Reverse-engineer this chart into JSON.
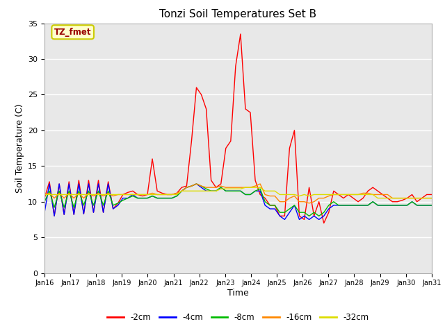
{
  "title": "Tonzi Soil Temperatures Set B",
  "xlabel": "Time",
  "ylabel": "Soil Temperature (C)",
  "annotation_text": "TZ_fmet",
  "annotation_bg": "#FFFFCC",
  "annotation_border": "#CCCC00",
  "annotation_fg": "#990000",
  "ylim": [
    0,
    35
  ],
  "bg_color": "#E8E8E8",
  "series_colors": {
    "-2cm": "#FF0000",
    "-4cm": "#0000FF",
    "-8cm": "#00BB00",
    "-16cm": "#FF8800",
    "-32cm": "#DDDD00"
  },
  "x_tick_labels": [
    "Jan 16",
    "Jan 17",
    "Jan 18",
    "Jan 19",
    "Jan 20",
    "Jan 21",
    "Jan 22",
    "Jan 23",
    "Jan 24",
    "Jan 25",
    "Jan 26",
    "Jan 27",
    "Jan 28",
    "Jan 29",
    "Jan 30",
    "Jan 31"
  ],
  "series": {
    "-2cm": [
      10.5,
      12.8,
      8.0,
      12.5,
      8.2,
      12.8,
      8.2,
      13.0,
      8.3,
      13.0,
      8.5,
      13.0,
      8.5,
      12.8,
      9.0,
      9.8,
      11.0,
      11.3,
      11.5,
      11.0,
      10.8,
      11.0,
      16.0,
      11.5,
      11.2,
      11.0,
      11.0,
      11.2,
      12.0,
      12.2,
      18.5,
      26.0,
      25.0,
      23.0,
      13.0,
      12.0,
      12.5,
      17.5,
      18.5,
      29.0,
      33.5,
      23.0,
      22.5,
      13.0,
      11.0,
      10.5,
      9.5,
      9.5,
      8.0,
      8.0,
      17.5,
      20.0,
      8.0,
      7.5,
      12.0,
      8.0,
      10.0,
      7.0,
      8.5,
      11.5,
      11.0,
      10.5,
      11.0,
      10.5,
      10.0,
      10.5,
      11.5,
      12.0,
      11.5,
      11.0,
      10.5,
      10.0,
      10.0,
      10.2,
      10.5,
      11.0,
      10.0,
      10.5,
      11.0,
      11.0
    ],
    "-4cm": [
      8.5,
      12.5,
      8.0,
      12.5,
      8.2,
      12.5,
      8.2,
      12.5,
      8.3,
      12.5,
      8.5,
      12.5,
      8.5,
      12.5,
      9.0,
      9.5,
      10.5,
      10.5,
      11.0,
      10.5,
      10.5,
      10.5,
      10.8,
      10.5,
      10.5,
      10.5,
      10.5,
      10.8,
      11.5,
      12.0,
      12.2,
      12.5,
      12.0,
      11.5,
      11.5,
      11.5,
      12.0,
      11.5,
      11.5,
      11.5,
      11.5,
      11.0,
      11.0,
      11.5,
      11.5,
      9.5,
      9.0,
      9.0,
      8.0,
      7.5,
      8.5,
      9.5,
      7.5,
      8.0,
      7.5,
      8.0,
      7.5,
      8.0,
      9.0,
      9.5,
      9.5,
      9.5,
      9.5,
      9.5,
      9.5,
      9.5,
      9.5,
      10.0,
      9.5,
      9.5,
      9.5,
      9.5,
      9.5,
      9.5,
      9.5,
      10.0,
      9.5,
      9.5,
      9.5,
      9.5
    ],
    "-8cm": [
      10.0,
      11.5,
      9.2,
      11.5,
      9.2,
      11.5,
      9.2,
      11.5,
      9.5,
      11.5,
      9.5,
      11.5,
      9.5,
      11.5,
      9.5,
      9.8,
      10.2,
      10.5,
      10.8,
      10.5,
      10.5,
      10.5,
      10.8,
      10.5,
      10.5,
      10.5,
      10.5,
      10.8,
      11.5,
      12.0,
      12.2,
      12.5,
      12.2,
      11.8,
      11.5,
      11.5,
      12.0,
      11.5,
      11.5,
      11.5,
      11.5,
      11.0,
      11.0,
      11.5,
      11.8,
      10.0,
      9.5,
      9.5,
      8.5,
      8.5,
      9.0,
      9.5,
      8.5,
      8.5,
      8.0,
      8.5,
      8.0,
      8.5,
      9.5,
      10.0,
      9.5,
      9.5,
      9.5,
      9.5,
      9.5,
      9.5,
      9.5,
      10.0,
      9.5,
      9.5,
      9.5,
      9.5,
      9.5,
      9.5,
      9.5,
      10.0,
      9.5,
      9.5,
      9.5,
      9.5
    ],
    "-16cm": [
      11.0,
      11.2,
      10.5,
      11.2,
      10.5,
      11.2,
      10.5,
      11.2,
      10.5,
      11.2,
      10.8,
      11.2,
      10.8,
      11.2,
      10.8,
      11.0,
      11.0,
      11.0,
      11.0,
      11.0,
      11.0,
      11.0,
      11.2,
      11.0,
      11.0,
      11.0,
      11.0,
      11.2,
      11.5,
      12.0,
      12.2,
      12.5,
      12.2,
      12.0,
      12.0,
      12.0,
      12.2,
      12.0,
      12.0,
      12.0,
      12.0,
      12.0,
      12.0,
      12.2,
      12.5,
      11.0,
      10.8,
      10.8,
      10.0,
      10.0,
      10.5,
      10.8,
      10.0,
      10.0,
      9.8,
      10.0,
      10.5,
      10.5,
      10.8,
      11.0,
      11.0,
      11.0,
      11.0,
      11.0,
      11.0,
      11.2,
      11.2,
      11.0,
      11.0,
      11.0,
      11.0,
      10.5,
      10.5,
      10.5,
      10.5,
      10.5,
      10.5,
      10.5,
      10.5,
      10.5
    ],
    "-32cm": [
      11.0,
      11.0,
      11.0,
      11.0,
      11.0,
      11.0,
      11.0,
      11.0,
      11.0,
      11.0,
      11.0,
      11.0,
      11.0,
      11.0,
      11.0,
      11.0,
      11.0,
      11.0,
      11.0,
      11.0,
      11.0,
      11.0,
      11.0,
      11.0,
      11.0,
      11.0,
      11.0,
      11.0,
      11.5,
      11.5,
      11.5,
      11.5,
      11.5,
      11.5,
      11.5,
      11.5,
      11.8,
      11.8,
      11.8,
      11.8,
      11.8,
      12.0,
      12.0,
      12.0,
      12.0,
      11.5,
      11.5,
      11.5,
      11.0,
      11.0,
      11.0,
      11.0,
      10.8,
      11.0,
      10.8,
      11.0,
      11.0,
      11.0,
      11.0,
      11.0,
      11.0,
      11.0,
      11.0,
      11.0,
      11.0,
      11.0,
      11.0,
      11.0,
      10.5,
      10.5,
      10.5,
      10.5,
      10.5,
      10.5,
      10.5,
      10.5,
      10.5,
      10.5,
      10.5,
      10.5
    ]
  },
  "legend_labels": [
    "-2cm",
    "-4cm",
    "-8cm",
    "-16cm",
    "-32cm"
  ]
}
